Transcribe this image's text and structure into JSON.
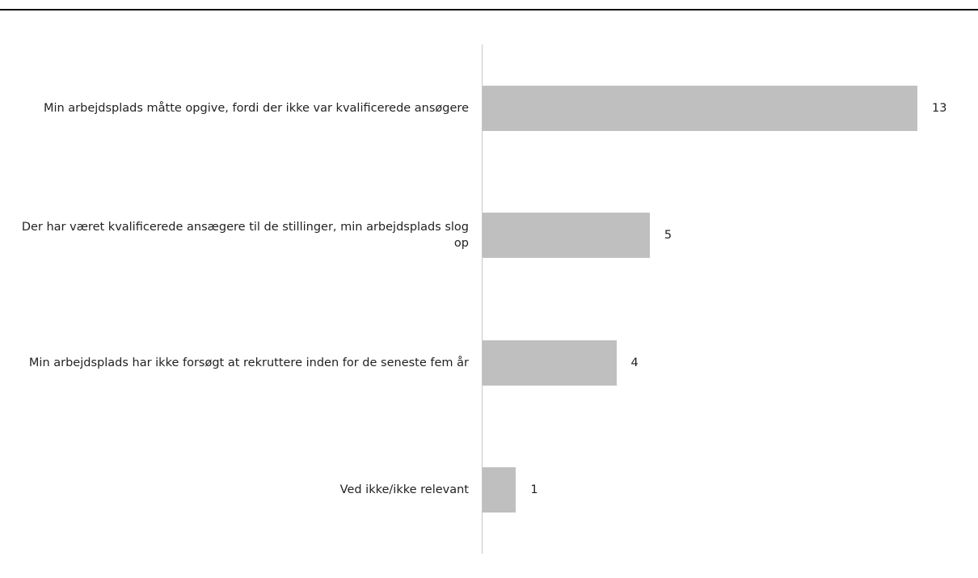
{
  "chart_data": {
    "type": "bar",
    "orientation": "horizontal",
    "categories": [
      "Min arbejdsplads måtte opgive, fordi der ikke var kvalificerede ansøgere",
      "Der har været kvalificerede ansægere til de stillinger, min arbejdsplads slog op",
      "Min arbejdsplads har ikke forsøgt at rekruttere inden for de seneste fem år",
      "Ved ikke/ikke relevant"
    ],
    "values": [
      13,
      5,
      4,
      1
    ],
    "color": "#bfbfbf"
  }
}
